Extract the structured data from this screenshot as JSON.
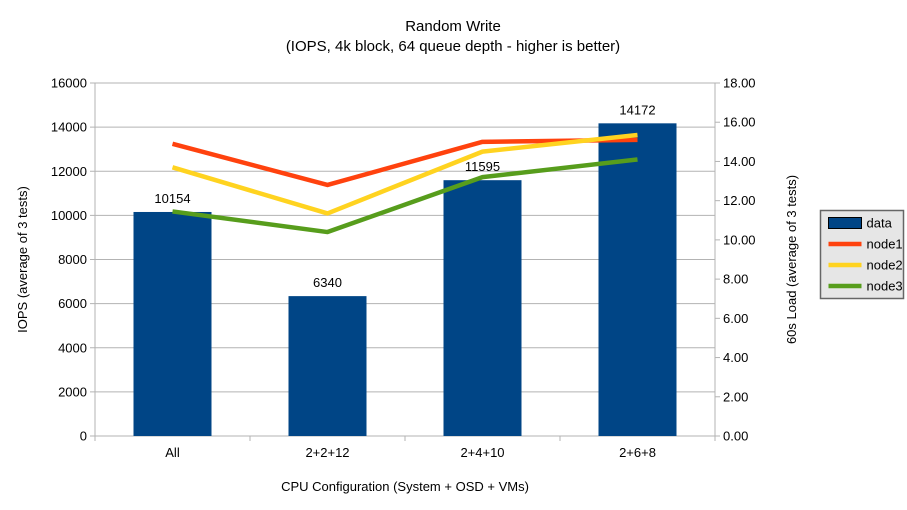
{
  "title": {
    "line1": "Random Write",
    "line2": "(IOPS, 4k block, 64 queue depth - higher is better)"
  },
  "chart_data": {
    "type": "bar+line",
    "categories": [
      "All",
      "2+2+12",
      "2+4+10",
      "2+6+8"
    ],
    "bar_series": {
      "name": "data",
      "color": "#004586",
      "axis": "left",
      "values": [
        10154,
        6340,
        11595,
        14172
      ],
      "value_labels": [
        "10154",
        "6340",
        "11595",
        "14172"
      ]
    },
    "line_series": [
      {
        "name": "node1",
        "color": "#ff420e",
        "axis": "right",
        "values": [
          14.9,
          12.8,
          15.0,
          15.1
        ]
      },
      {
        "name": "node2",
        "color": "#ffd320",
        "axis": "right",
        "values": [
          13.7,
          11.35,
          14.5,
          15.35
        ]
      },
      {
        "name": "node3",
        "color": "#579d1c",
        "axis": "right",
        "values": [
          11.45,
          10.4,
          13.2,
          14.1
        ]
      }
    ],
    "left_axis": {
      "title": "IOPS (average of 3 tests)",
      "min": 0,
      "max": 16000,
      "step": 2000
    },
    "right_axis": {
      "title": "60s Load (average of 3 tests)",
      "min": 0,
      "max": 18,
      "step": 2,
      "decimals": 2
    },
    "x_axis": {
      "title": "CPU Configuration (System + OSD + VMs)"
    },
    "legend": {
      "position": "right",
      "entries": [
        "data",
        "node1",
        "node2",
        "node3"
      ]
    },
    "grid": true,
    "colors": {
      "grid": "#b3b3b3",
      "axis": "#b3b3b3",
      "text": "#000000",
      "legend_fill": "#e6e6e6",
      "legend_border": "#666666"
    }
  }
}
